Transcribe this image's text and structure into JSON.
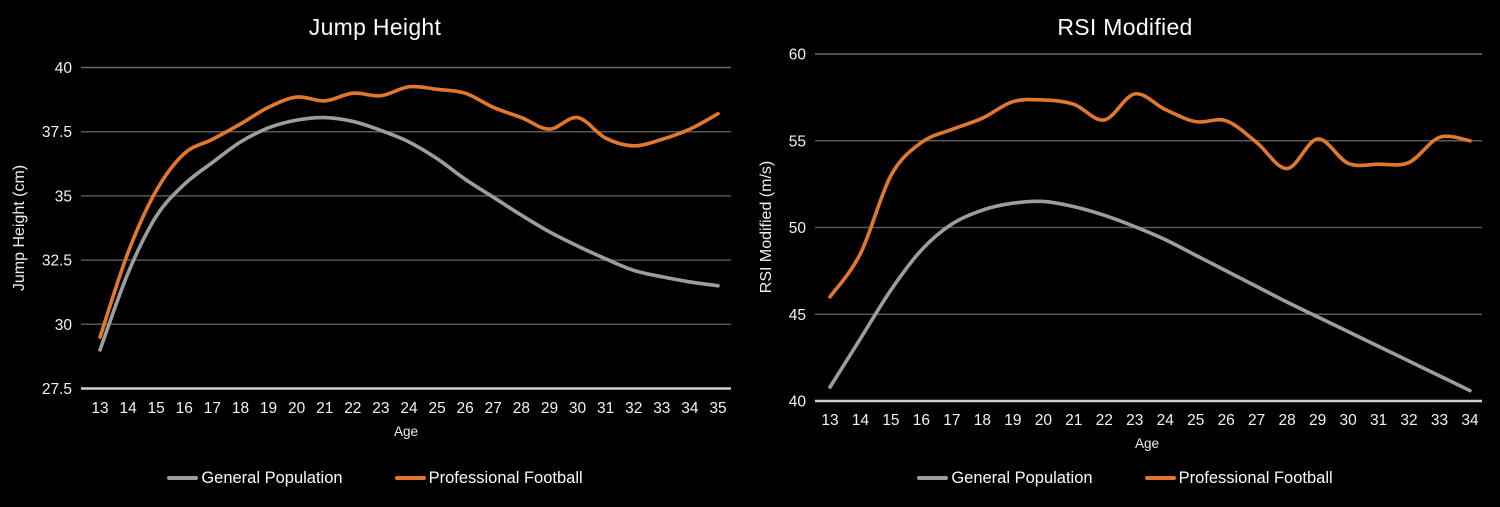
{
  "page": {
    "background": "#000000",
    "text_color": "#f2f2f2",
    "gridline_color": "#575757",
    "axis_line_color": "#cfcfcf"
  },
  "chart_data": [
    {
      "type": "line",
      "title": "Jump Height",
      "xlabel": "Age",
      "ylabel": "Jump Height (cm)",
      "x": [
        13,
        14,
        15,
        16,
        17,
        18,
        19,
        20,
        21,
        22,
        23,
        24,
        25,
        26,
        27,
        28,
        29,
        30,
        31,
        32,
        33,
        34,
        35
      ],
      "ylim": [
        27.5,
        40
      ],
      "yticks": [
        27.5,
        30,
        32.5,
        35,
        37.5,
        40
      ],
      "ytick_labels": [
        "27.5",
        "30",
        "32.5",
        "35",
        "37.5",
        "40"
      ],
      "grid": true,
      "legend_position": "bottom",
      "series": [
        {
          "name": "General Population",
          "color": "#9d9d9d",
          "values": [
            29.0,
            32.0,
            34.2,
            35.45,
            36.3,
            37.1,
            37.65,
            37.95,
            38.05,
            37.9,
            37.55,
            37.1,
            36.45,
            35.65,
            34.95,
            34.25,
            33.6,
            33.05,
            32.55,
            32.1,
            31.85,
            31.65,
            31.5
          ]
        },
        {
          "name": "Professional Football",
          "color": "#e2782e",
          "values": [
            29.5,
            32.8,
            35.2,
            36.65,
            37.2,
            37.8,
            38.45,
            38.85,
            38.7,
            39.0,
            38.9,
            39.25,
            39.15,
            39.0,
            38.45,
            38.05,
            37.6,
            38.05,
            37.25,
            36.95,
            37.2,
            37.6,
            38.2
          ]
        }
      ]
    },
    {
      "type": "line",
      "title": "RSI Modified",
      "xlabel": "Age",
      "ylabel": "RSI Modified (m/s)",
      "x": [
        13,
        14,
        15,
        16,
        17,
        18,
        19,
        20,
        21,
        22,
        23,
        24,
        25,
        26,
        27,
        28,
        29,
        30,
        31,
        32,
        33,
        34
      ],
      "ylim": [
        40,
        60
      ],
      "yticks": [
        40,
        45,
        50,
        55,
        60
      ],
      "ytick_labels": [
        "40",
        "45",
        "50",
        "55",
        "60"
      ],
      "grid": true,
      "legend_position": "bottom",
      "series": [
        {
          "name": "General Population",
          "color": "#9d9d9d",
          "values": [
            40.8,
            43.6,
            46.4,
            48.7,
            50.2,
            51.0,
            51.4,
            51.5,
            51.2,
            50.7,
            50.05,
            49.3,
            48.4,
            47.5,
            46.6,
            45.7,
            44.85,
            44.0,
            43.15,
            42.3,
            41.45,
            40.6
          ]
        },
        {
          "name": "Professional Football",
          "color": "#e2782e",
          "values": [
            46.0,
            48.5,
            53.0,
            54.9,
            55.65,
            56.3,
            57.25,
            57.35,
            57.1,
            56.2,
            57.7,
            56.8,
            56.1,
            56.15,
            54.9,
            53.4,
            55.1,
            53.7,
            53.65,
            53.75,
            55.2,
            55.0
          ]
        }
      ]
    }
  ]
}
